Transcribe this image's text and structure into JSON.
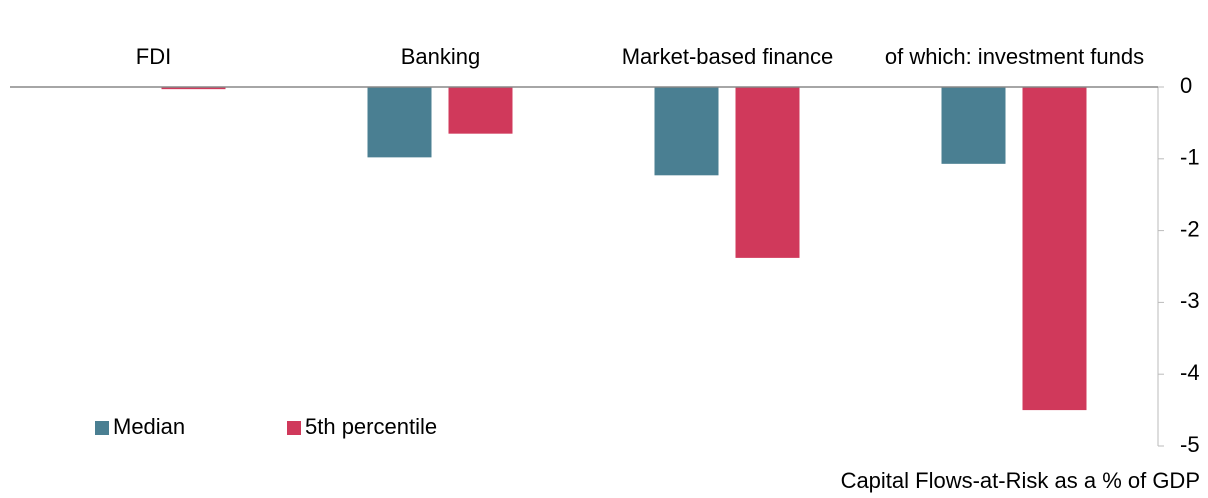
{
  "chart_data": {
    "type": "bar",
    "categories": [
      "FDI",
      "Banking",
      "Market-based finance",
      "of which: investment funds"
    ],
    "series": [
      {
        "name": "Median",
        "color": "#4a7f92",
        "values": [
          0,
          -0.98,
          -1.23,
          -1.07
        ]
      },
      {
        "name": "5th percentile",
        "color": "#d0395b",
        "values": [
          -0.03,
          -0.65,
          -2.38,
          -4.5
        ]
      }
    ],
    "ylim": [
      -5,
      0
    ],
    "yticks": [
      0,
      -1,
      -2,
      -3,
      -4,
      -5
    ],
    "y_axis_position": "right",
    "legend": "lower left",
    "axis_label": "Capital Flows-at-Risk as a % of GDP"
  }
}
